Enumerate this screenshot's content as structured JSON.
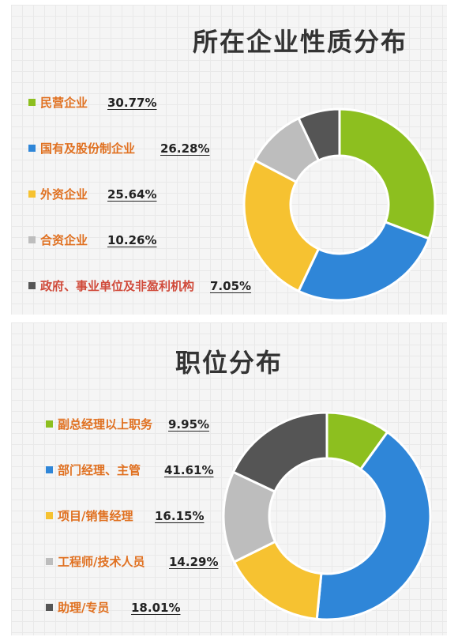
{
  "chart_data": [
    {
      "type": "pie",
      "title": "所在企业性质分布",
      "categories": [
        "民营企业",
        "国有及股份制企业",
        "外资企业",
        "合资企业",
        "政府、事业单位及非盈利机构"
      ],
      "values": [
        30.77,
        26.28,
        25.64,
        10.26,
        7.05
      ],
      "value_labels": [
        "30.77%",
        "26.28%",
        "25.64%",
        "10.26%",
        "7.05%"
      ],
      "colors": [
        "#8dbf1f",
        "#2f86d8",
        "#f6c231",
        "#bdbdbd",
        "#555555"
      ],
      "label_colors": [
        "#e07020",
        "#e07020",
        "#e07020",
        "#e07020",
        "#d04a3a"
      ],
      "legend_placement": "left",
      "style": "donut"
    },
    {
      "type": "pie",
      "title": "职位分布",
      "categories": [
        "副总经理以上职务",
        "部门经理、主管",
        "项目/销售经理",
        "工程师/技术人员",
        "助理/专员"
      ],
      "values": [
        9.95,
        41.61,
        16.15,
        14.29,
        18.01
      ],
      "value_labels": [
        "9.95%",
        "41.61%",
        "16.15%",
        "14.29%",
        "18.01%"
      ],
      "colors": [
        "#8dbf1f",
        "#2f86d8",
        "#f6c231",
        "#bdbdbd",
        "#555555"
      ],
      "label_colors": [
        "#e07020",
        "#e07020",
        "#e07020",
        "#e07020",
        "#e07020"
      ],
      "legend_placement": "left",
      "style": "donut"
    }
  ]
}
